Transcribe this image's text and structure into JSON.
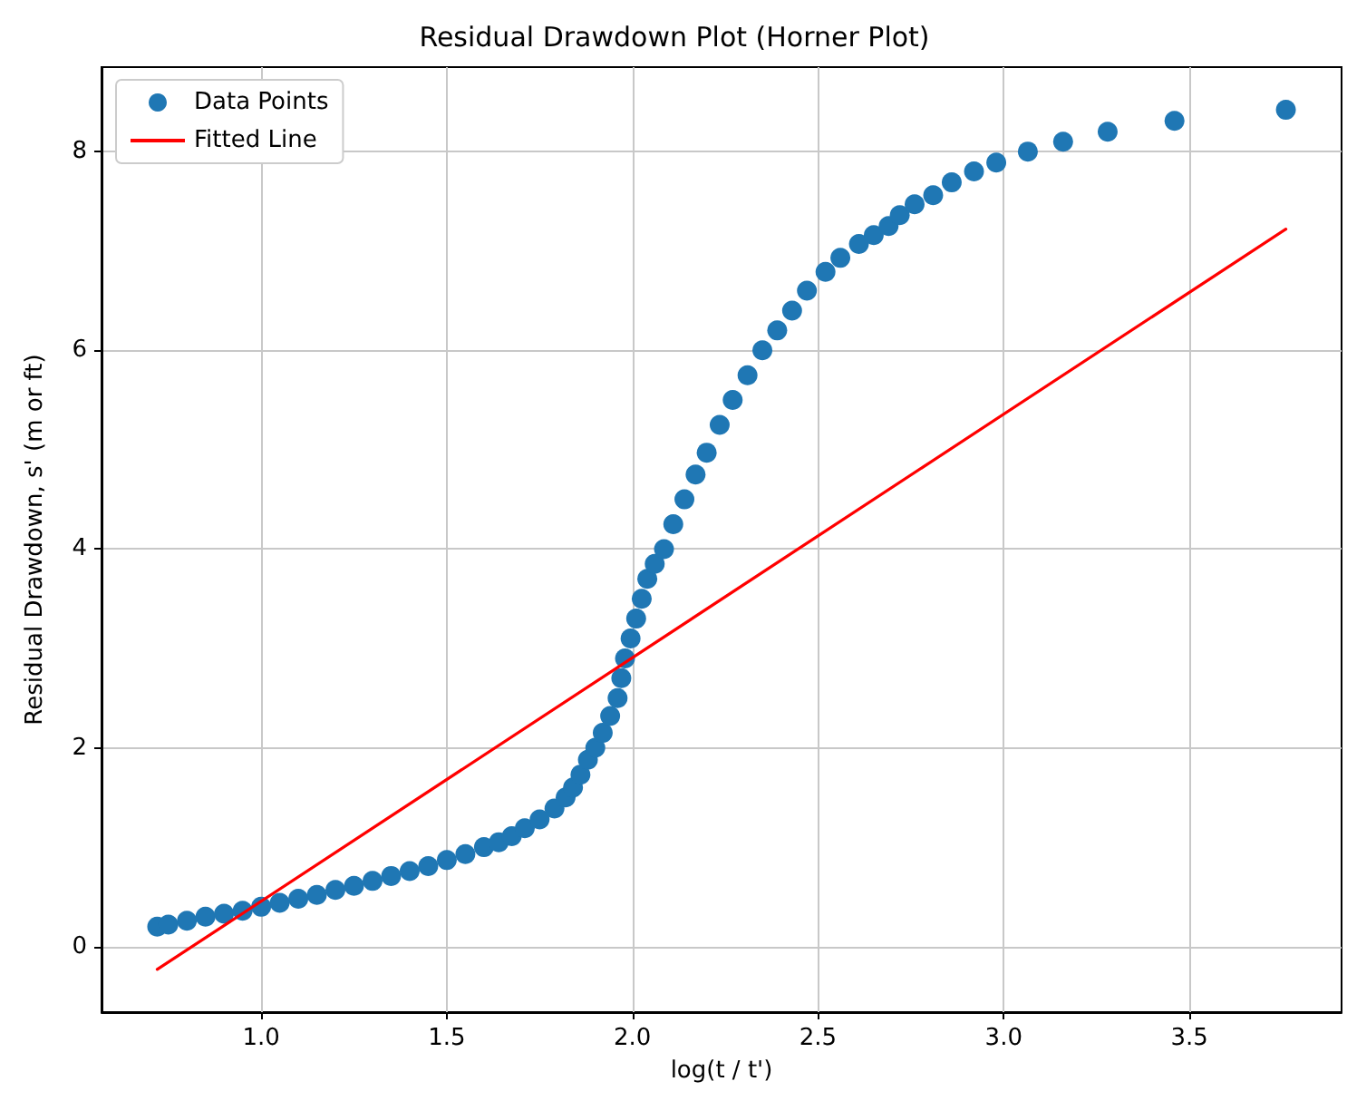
{
  "chart_data": {
    "type": "scatter",
    "title": "Residual Drawdown Plot (Horner Plot)",
    "xlabel": "log(t / t')",
    "ylabel": "Residual Drawdown, s' (m or ft)",
    "xlim": [
      0.57,
      3.91
    ],
    "ylim": [
      -0.66,
      8.85
    ],
    "xticks": [
      {
        "value": 1,
        "label": "1.0"
      },
      {
        "value": 1.5,
        "label": "1.5"
      },
      {
        "value": 2,
        "label": "2.0"
      },
      {
        "value": 2.5,
        "label": "2.5"
      },
      {
        "value": 3,
        "label": "3.0"
      },
      {
        "value": 3.5,
        "label": "3.5"
      }
    ],
    "yticks": [
      0,
      2,
      4,
      6,
      8
    ],
    "grid": true,
    "legend": "top left",
    "series": [
      {
        "name": "Data Points",
        "marker": "circle",
        "color": "#1f77b4",
        "x": [
          0.72,
          0.75,
          0.8,
          0.85,
          0.9,
          0.95,
          1.0,
          1.05,
          1.1,
          1.15,
          1.2,
          1.25,
          1.3,
          1.35,
          1.4,
          1.45,
          1.5,
          1.55,
          1.6,
          1.64,
          1.675,
          1.71,
          1.75,
          1.79,
          1.82,
          1.84,
          1.86,
          1.88,
          1.9,
          1.92,
          1.94,
          1.96,
          1.97,
          1.98,
          1.995,
          2.01,
          2.025,
          2.04,
          2.06,
          2.085,
          2.11,
          2.14,
          2.17,
          2.2,
          2.235,
          2.27,
          2.31,
          2.35,
          2.39,
          2.43,
          2.47,
          2.52,
          2.56,
          2.61,
          2.65,
          2.69,
          2.72,
          2.76,
          2.81,
          2.86,
          2.92,
          2.98,
          3.065,
          3.16,
          3.28,
          3.46,
          3.76
        ],
        "values": [
          0.2,
          0.22,
          0.26,
          0.3,
          0.33,
          0.36,
          0.4,
          0.44,
          0.48,
          0.52,
          0.57,
          0.61,
          0.66,
          0.71,
          0.76,
          0.81,
          0.87,
          0.93,
          1.0,
          1.05,
          1.11,
          1.19,
          1.28,
          1.39,
          1.5,
          1.6,
          1.73,
          1.88,
          2.0,
          2.15,
          2.32,
          2.5,
          2.7,
          2.9,
          3.1,
          3.3,
          3.5,
          3.7,
          3.85,
          4.0,
          4.25,
          4.5,
          4.75,
          4.97,
          5.25,
          5.5,
          5.75,
          6.0,
          6.2,
          6.4,
          6.6,
          6.79,
          6.93,
          7.07,
          7.16,
          7.25,
          7.36,
          7.47,
          7.56,
          7.69,
          7.8,
          7.89,
          8.0,
          8.1,
          8.2,
          8.31,
          8.42
        ]
      },
      {
        "name": "Fitted Line",
        "type": "line",
        "marker": "none",
        "line_style": "solid",
        "color": "#ff0000",
        "x": [
          0.72,
          3.76
        ],
        "values": [
          -0.23,
          7.22
        ]
      }
    ]
  }
}
